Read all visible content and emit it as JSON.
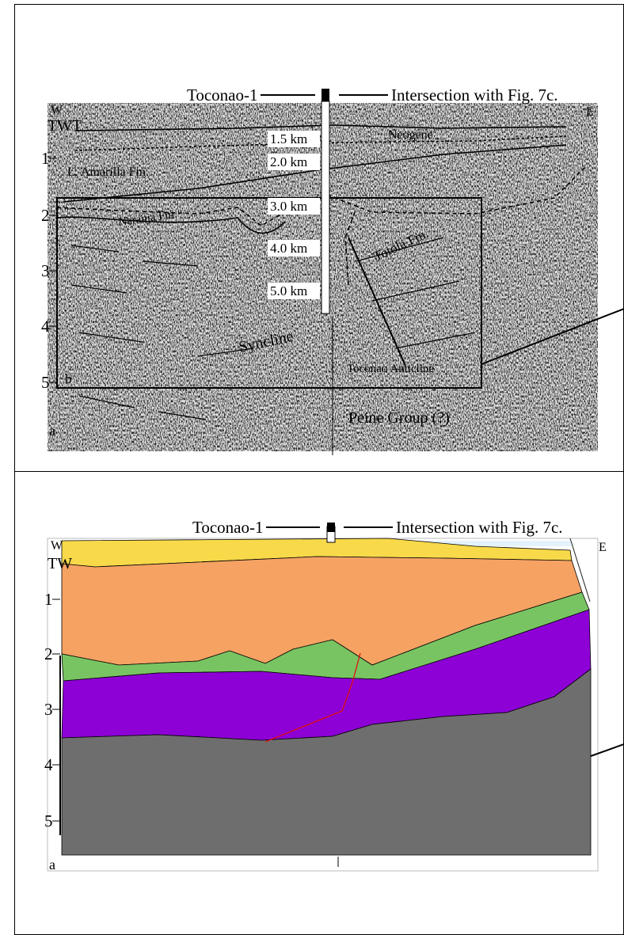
{
  "top_panel": {
    "well_label": "Toconao-1",
    "intersection_label": "Intersection with  Fig. 7c.",
    "west": "W",
    "east": "E",
    "axis_title": "TWT",
    "axis_ticks": [
      "1",
      "2",
      "3",
      "4",
      "5"
    ],
    "depth_labels": [
      "1.5 km",
      "2.0 km",
      "3.0 km",
      "4.0 km",
      "5.0 km"
    ],
    "formations": [
      "Neogene",
      "L. Amarilla Fm.",
      "Naranja Fm.",
      "Totola Fm.",
      "Peine Group  (?)"
    ],
    "features": [
      "Syncline",
      "Toconao Anticline"
    ],
    "box_label": "b",
    "panel_label": "a"
  },
  "bottom_panel": {
    "well_label": "Toconao-1",
    "intersection_label": "Intersection with  Fig. 7c.",
    "west": "W",
    "east": "E",
    "axis_title": "TW",
    "axis_ticks": [
      "1",
      "2",
      "3",
      "4",
      "5"
    ],
    "panel_label": "a"
  }
}
